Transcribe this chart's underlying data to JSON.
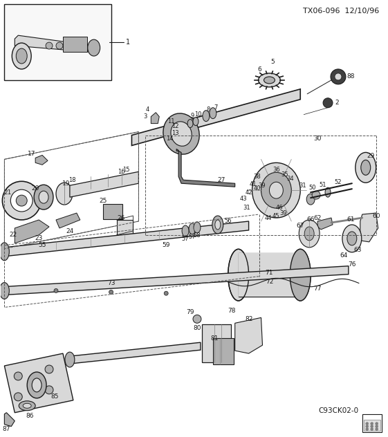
{
  "title": "TX06-096  12/10/96",
  "subtitle": "C93CK02-0",
  "bg_color": "#ffffff",
  "lc": "#1a1a1a",
  "tc": "#1a1a1a",
  "fig_width": 5.61,
  "fig_height": 6.32,
  "dpi": 100,
  "gray_light": "#d8d8d8",
  "gray_mid": "#b0b0b0",
  "gray_dark": "#808080",
  "gray_vdark": "#404040"
}
